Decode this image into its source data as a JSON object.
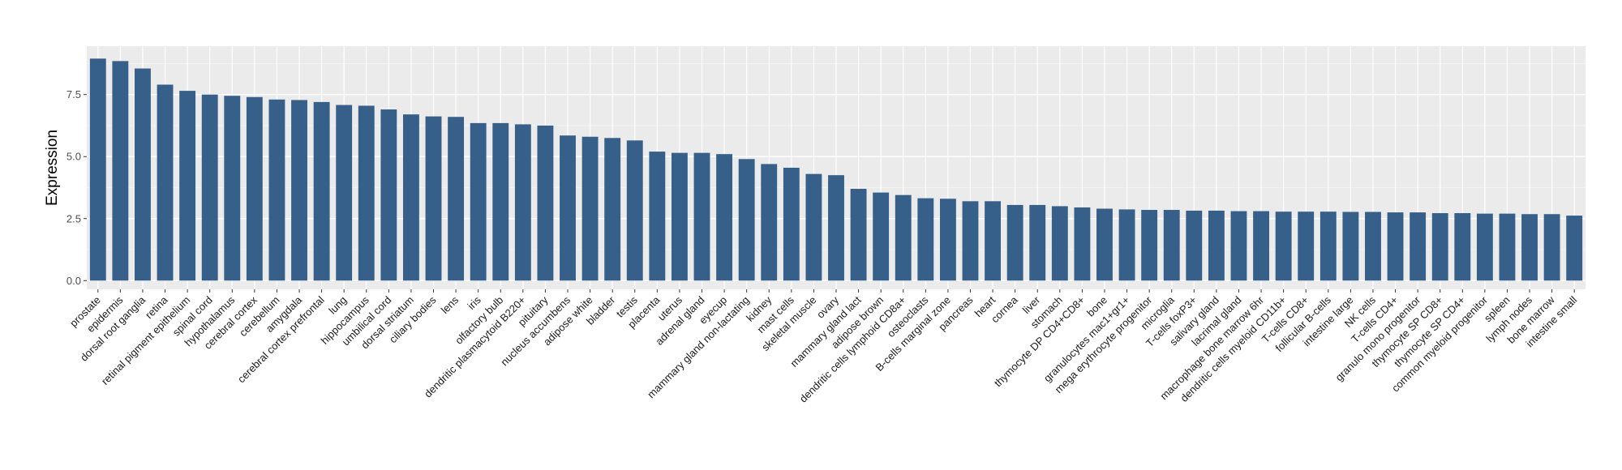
{
  "chart_data": {
    "type": "bar",
    "title": "",
    "xlabel": "",
    "ylabel": "Expression",
    "ylim": [
      -0.35,
      9.45
    ],
    "yticks": [
      0.0,
      2.5,
      5.0,
      7.5
    ],
    "ytick_labels": [
      "0.0",
      "2.5",
      "5.0",
      "7.5"
    ],
    "grid": true,
    "panel_color": "#ebebeb",
    "bar_color": "#365f89",
    "categories": [
      "prostate",
      "epidermis",
      "dorsal root ganglia",
      "retina",
      "retinal pigment epithelium",
      "spinal cord",
      "hypothalamus",
      "cerebral cortex",
      "cerebellum",
      "amygdala",
      "cerebral cortex prefrontal",
      "lung",
      "hippocampus",
      "umbilical cord",
      "dorsal striatum",
      "ciliary bodies",
      "lens",
      "iris",
      "olfactory bulb",
      "dendritic plasmacytoid B220+",
      "pituitary",
      "nucleus accumbens",
      "adipose white",
      "bladder",
      "testis",
      "placenta",
      "uterus",
      "adrenal gland",
      "eyecup",
      "mammary gland non-lactating",
      "kidney",
      "mast cells",
      "skeletal muscle",
      "ovary",
      "mammary gland  lact",
      "adipose brown",
      "dendritic cells lymphoid CD8a+",
      "osteoclasts",
      "B-cells marginal zone",
      "pancreas",
      "heart",
      "cornea",
      "liver",
      "stomach",
      "thymocyte DP CD4+CD8+",
      "bone",
      "granulocytes mac1+gr1+",
      "mega erythrocyte progenitor",
      "microglia",
      "T-cells foxP3+",
      "salivary gland",
      "lacrimal gland",
      "macrophage bone marrow 6hr",
      "dendritic cells myeloid CD11b+",
      "T-cells CD8+",
      "follicular B-cells",
      "intestine large",
      "NK cells",
      "T-cells CD4+",
      "granulo mono progenitor",
      "thymocyte SP CD8+",
      "thymocyte SP CD4+",
      "common myeloid progenitor",
      "spleen",
      "lymph nodes",
      "bone marrow",
      "intestine small"
    ],
    "values": [
      8.95,
      8.85,
      8.55,
      7.9,
      7.65,
      7.5,
      7.45,
      7.4,
      7.3,
      7.28,
      7.2,
      7.08,
      7.05,
      6.9,
      6.7,
      6.62,
      6.6,
      6.35,
      6.35,
      6.3,
      6.25,
      5.85,
      5.8,
      5.75,
      5.65,
      5.2,
      5.15,
      5.15,
      5.1,
      4.9,
      4.7,
      4.55,
      4.3,
      4.25,
      3.7,
      3.55,
      3.45,
      3.32,
      3.3,
      3.2,
      3.2,
      3.05,
      3.05,
      3.0,
      2.95,
      2.9,
      2.87,
      2.85,
      2.85,
      2.82,
      2.82,
      2.8,
      2.8,
      2.78,
      2.78,
      2.78,
      2.77,
      2.77,
      2.75,
      2.75,
      2.72,
      2.72,
      2.7,
      2.7,
      2.68,
      2.68,
      2.62
    ]
  }
}
